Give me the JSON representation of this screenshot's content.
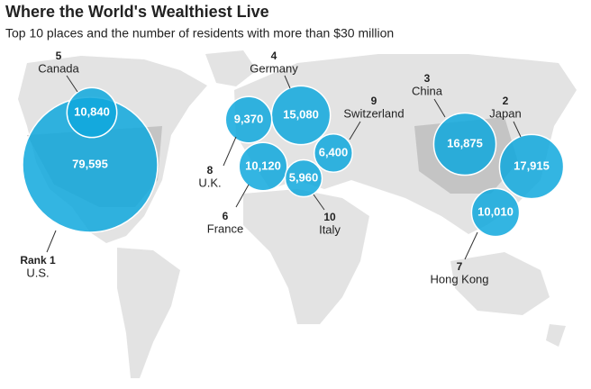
{
  "chart_data": {
    "type": "bubble-map",
    "title": "Where the World's Wealthiest Live",
    "subtitle": "Top 10 places and the number of residents with more than $30 million",
    "categories": [
      "U.S.",
      "Japan",
      "China",
      "Germany",
      "Canada",
      "France",
      "Hong Kong",
      "U.K.",
      "Switzerland",
      "Italy"
    ],
    "ranks": [
      {
        "value": 1,
        "label": "Rank 1"
      },
      2,
      3,
      4,
      5,
      6,
      7,
      8,
      9,
      10
    ],
    "values": [
      79595,
      17915,
      16875,
      15080,
      10840,
      10120,
      10010,
      9370,
      6400,
      5960
    ],
    "value_labels": [
      "79,595",
      "17,915",
      "16,875",
      "15,080",
      "10,840",
      "10,120",
      "10,010",
      "9,370",
      "6,400",
      "5,960"
    ],
    "color": "#0fa8dd"
  }
}
